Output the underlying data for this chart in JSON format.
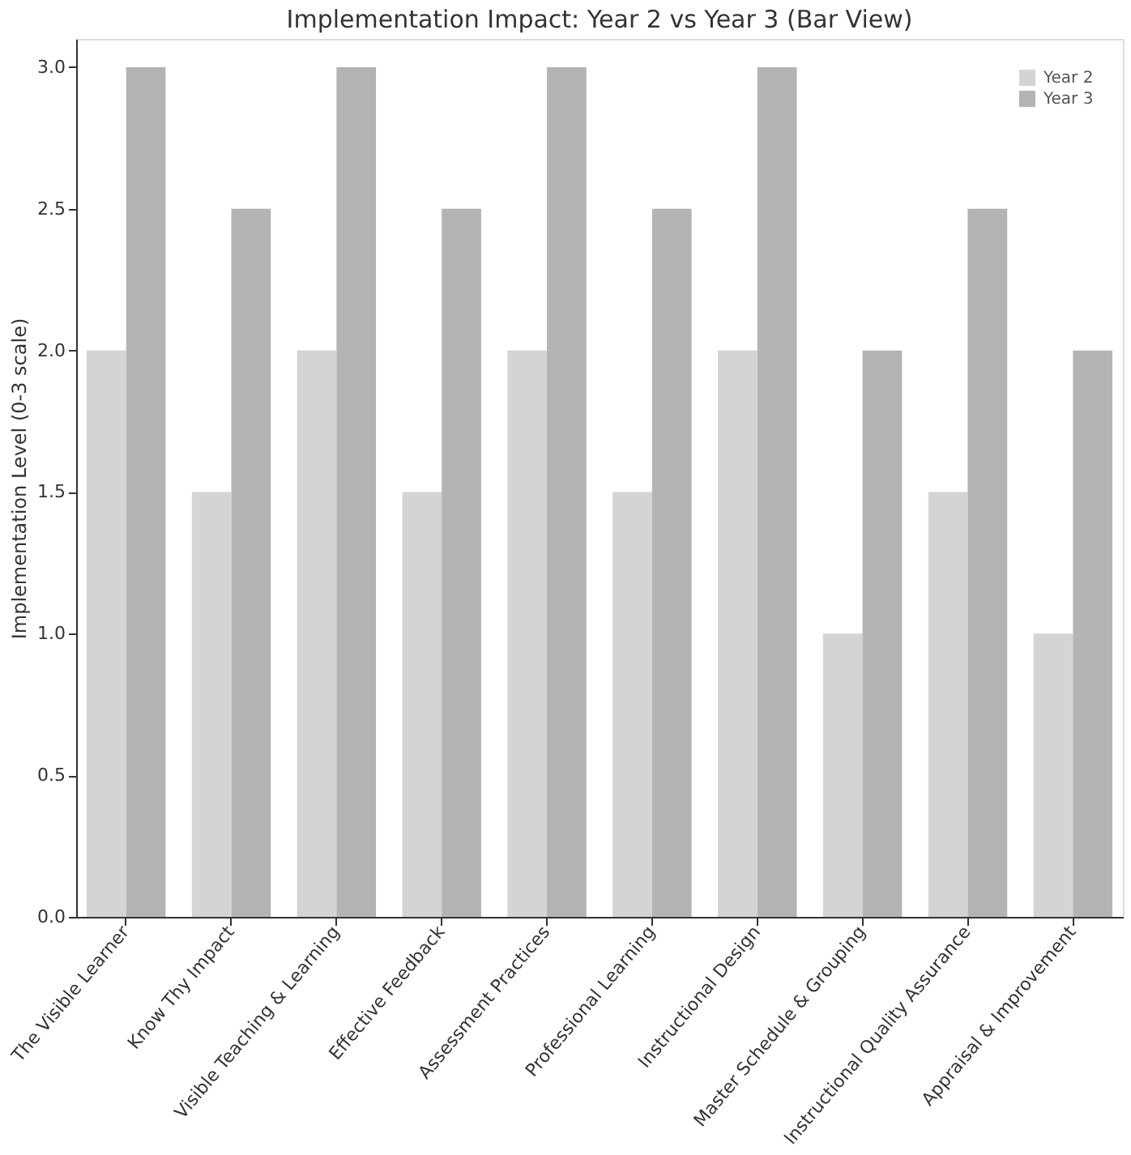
{
  "chart_data": {
    "type": "bar",
    "title": "Implementation Impact: Year 2 vs Year 3 (Bar View)",
    "ylabel": "Implementation Level (0-3 scale)",
    "categories": [
      "The Visible Learner",
      "Know Thy Impact",
      "Visible Teaching & Learning",
      "Effective Feedback",
      "Assessment Practices",
      "Professional Learning",
      "Instructional Design",
      "Master Schedule & Grouping",
      "Instructional Quality Assurance",
      "Appraisal & Improvement"
    ],
    "series": [
      {
        "name": "Year 2",
        "color": "#d4d4d4",
        "values": [
          2.0,
          1.5,
          2.0,
          1.5,
          2.0,
          1.5,
          2.0,
          1.0,
          1.5,
          1.0
        ]
      },
      {
        "name": "Year 3",
        "color": "#b4b4b4",
        "values": [
          3.0,
          2.5,
          3.0,
          2.5,
          3.0,
          2.5,
          3.0,
          2.0,
          2.5,
          2.0
        ]
      }
    ],
    "ylim": [
      0,
      3.1
    ],
    "yticks": [
      {
        "value": 0,
        "label": "0.0"
      },
      {
        "value": 0.5,
        "label": "0.5"
      },
      {
        "value": 1,
        "label": "1.0"
      },
      {
        "value": 1.5,
        "label": "1.5"
      },
      {
        "value": 2,
        "label": "2.0"
      },
      {
        "value": 2.5,
        "label": "2.5"
      },
      {
        "value": 3,
        "label": "3.0"
      }
    ],
    "grid": false,
    "legend": "top right"
  }
}
